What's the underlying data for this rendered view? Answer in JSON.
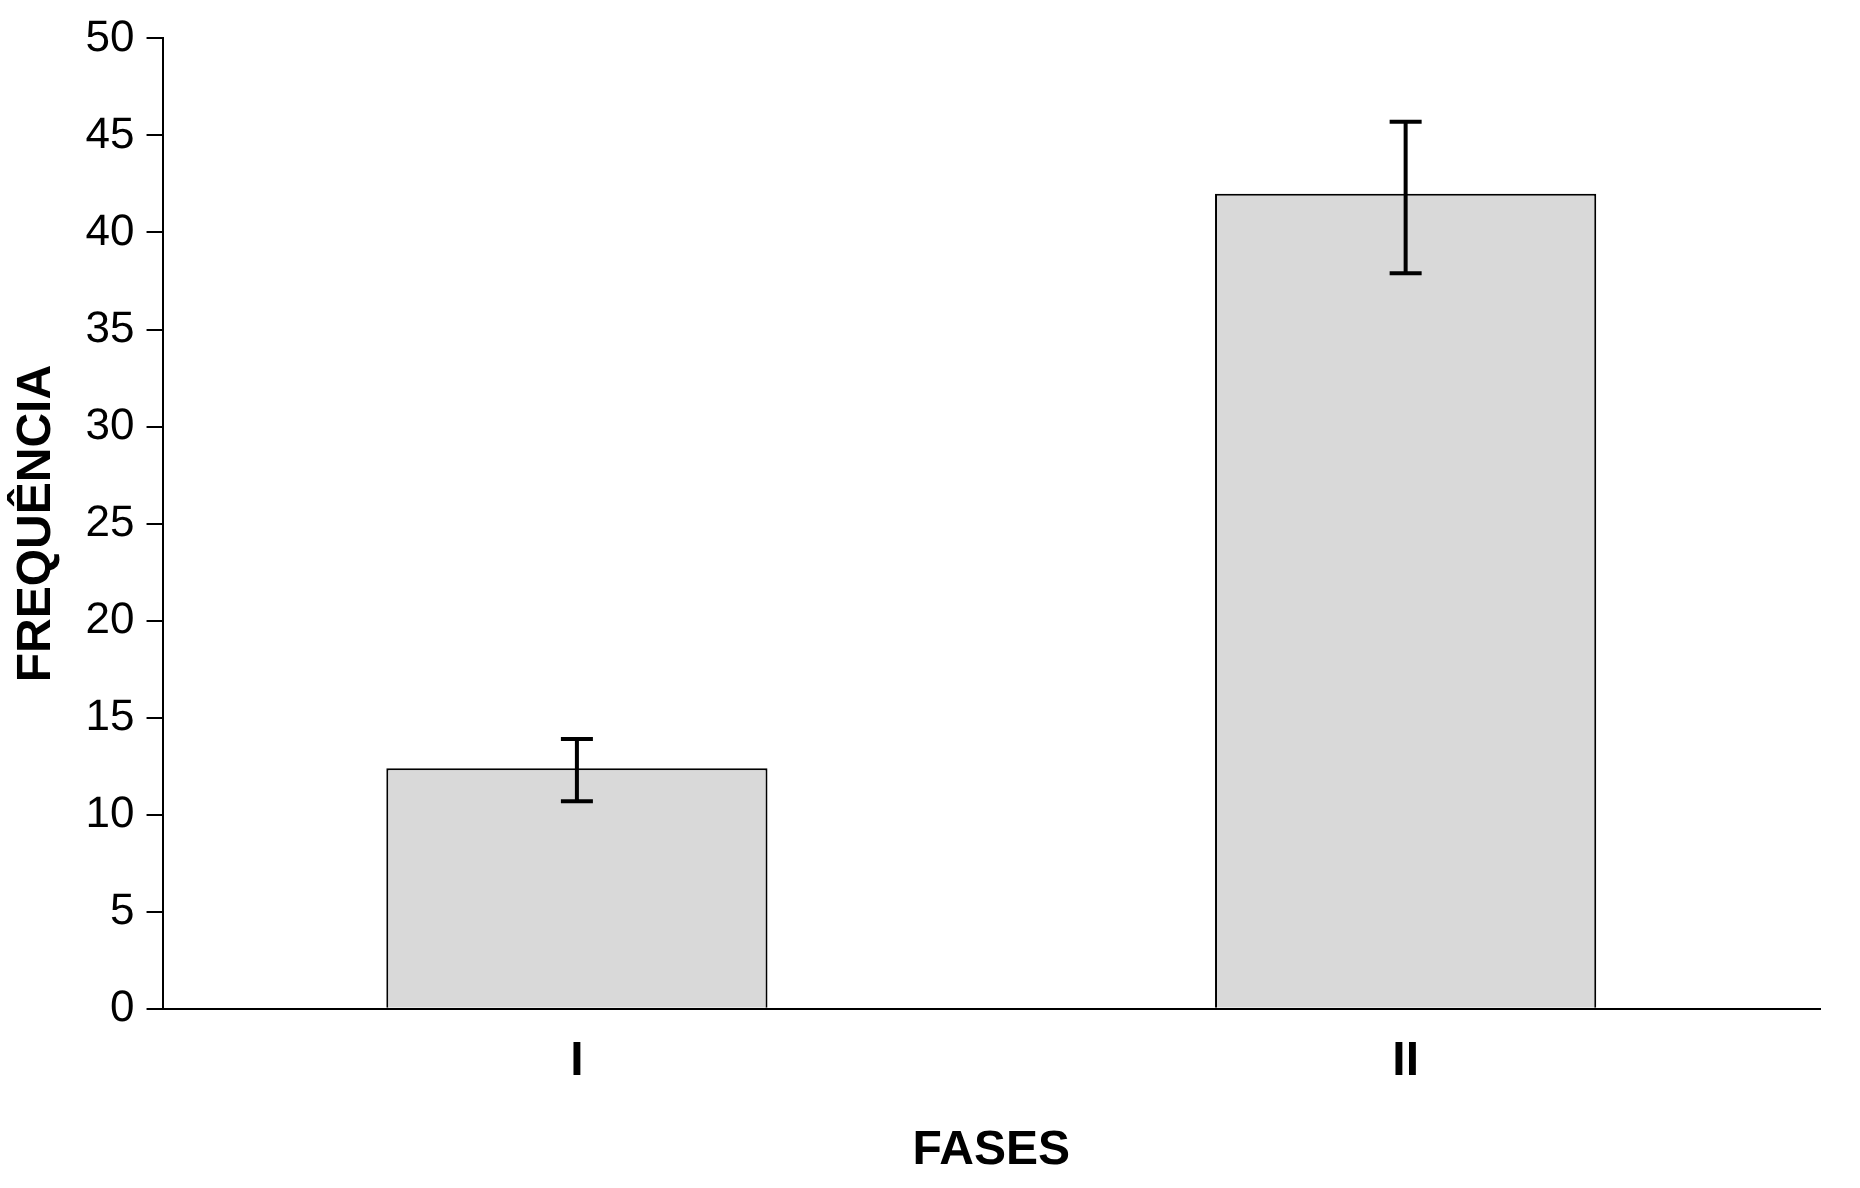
{
  "chart_data": {
    "type": "bar",
    "xlabel": "FASES",
    "ylabel": "FREQUÊNCIA",
    "categories": [
      "I",
      "II"
    ],
    "values": [
      12.4,
      42.0
    ],
    "errors": [
      [
        10.7,
        13.9
      ],
      [
        37.9,
        45.7
      ]
    ],
    "color": "#d9d9d9",
    "ylim": [
      0,
      50
    ],
    "yticks": [
      0,
      5,
      10,
      15,
      20,
      25,
      30,
      35,
      40,
      45,
      50
    ],
    "grid": false,
    "legend": false
  }
}
